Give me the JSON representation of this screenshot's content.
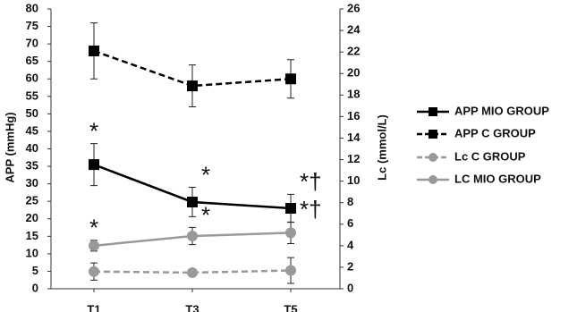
{
  "chart_data": {
    "type": "line",
    "y_label": "APP (mmHg)",
    "y2_label": "Lc (mmol/L)",
    "categories": [
      "T1",
      "T3",
      "T5"
    ],
    "ylim": [
      0,
      80
    ],
    "yticks": [
      0,
      5,
      10,
      15,
      20,
      25,
      30,
      35,
      40,
      45,
      50,
      55,
      60,
      65,
      70,
      75,
      80
    ],
    "y2lim": [
      0,
      26
    ],
    "y2ticks": [
      0,
      2,
      4,
      6,
      8,
      10,
      12,
      14,
      16,
      18,
      20,
      22,
      24,
      26
    ],
    "legend": "right",
    "series": [
      {
        "name": "APP MIO GROUP",
        "color": "#000000",
        "dashed": false,
        "marker": "square",
        "values": [
          35.5,
          24.8,
          23
        ],
        "errors": [
          6,
          4.2,
          4
        ],
        "annotations": [
          "*",
          "*",
          "*†"
        ]
      },
      {
        "name": "APP C GROUP",
        "color": "#000000",
        "dashed": true,
        "marker": "square",
        "values": [
          68,
          58,
          60
        ],
        "errors": [
          8,
          6,
          5.5
        ],
        "annotations": [
          null,
          null,
          null
        ]
      },
      {
        "name": "Lc C GROUP",
        "color": "#999999",
        "dashed": true,
        "marker": "circle",
        "axis": "y2",
        "values": [
          1.6,
          1.5,
          1.7
        ],
        "errors": [
          0.8,
          0.2,
          1.2
        ],
        "annotations": [
          null,
          null,
          null
        ]
      },
      {
        "name": "LC MIO GROUP",
        "color": "#999999",
        "dashed": false,
        "marker": "circle",
        "axis": "y2",
        "values": [
          4.0,
          4.9,
          5.2
        ],
        "errors": [
          0.5,
          0.8,
          1.0
        ],
        "annotations": [
          "*",
          "*",
          "*†"
        ]
      }
    ]
  }
}
